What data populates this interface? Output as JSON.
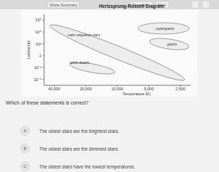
{
  "header": {
    "items": [
      "Show Summary",
      "Previous",
      "Next"
    ]
  },
  "chart_data": {
    "type": "scatter",
    "title": "Hertzsprung-Russell Diagram",
    "x_label": "Temperature (K)",
    "y_label": "Luminosity",
    "log": true,
    "xlim": [
      50000,
      2000
    ],
    "xticks": [
      {
        "value": 40000,
        "label": "40,000"
      },
      {
        "value": 20000,
        "label": "20,000"
      },
      {
        "value": 10000,
        "label": "10,000"
      },
      {
        "value": 5000,
        "label": "5,000"
      },
      {
        "value": 2500,
        "label": "2,500"
      }
    ],
    "ylim": [
      1e-05,
      10000000
    ],
    "yticks": [
      {
        "value": 1000000,
        "label": "10⁶"
      },
      {
        "value": 10000,
        "label": "10⁴"
      },
      {
        "value": 100,
        "label": "10²"
      },
      1,
      {
        "value": 0.01,
        "label": "10⁻²"
      },
      {
        "value": 0.0001,
        "label": "10⁻⁴"
      }
    ],
    "grid": false,
    "annotations": [
      "supergiants",
      "main sequence stars",
      "giants",
      "white dwarfs"
    ]
  },
  "question": "Which of these statements is correct?",
  "options": [
    {
      "letter": "A",
      "text": "The oldest stars are the brightest stars."
    },
    {
      "letter": "B",
      "text": "The oldest stars are the dimmest stars."
    },
    {
      "letter": "C",
      "text": "The oldest stars have the lowest temperatures."
    }
  ]
}
